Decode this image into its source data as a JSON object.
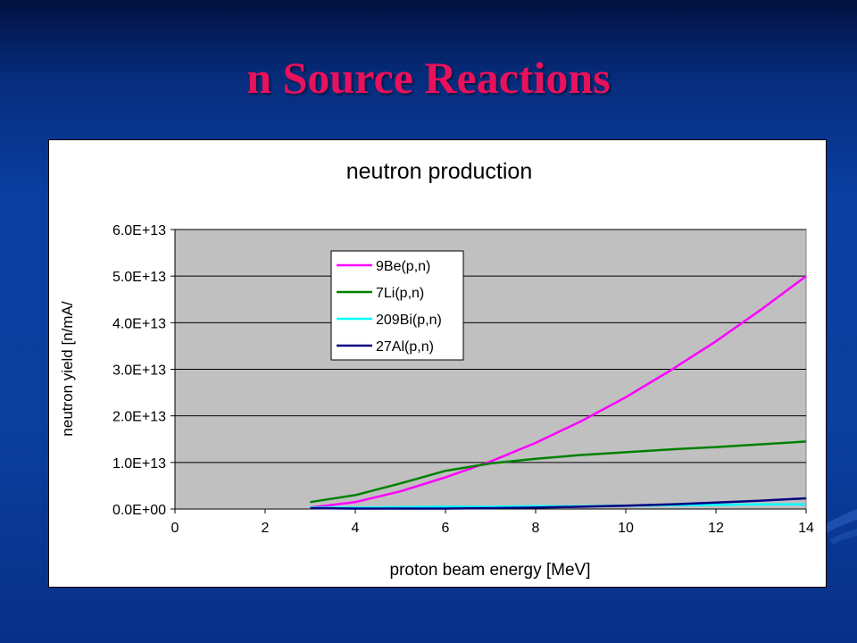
{
  "slide": {
    "title": "n Source Reactions"
  },
  "colors": {
    "title": "#e8115c",
    "plot_area": "#c0c0c0",
    "background": "#0b3f9e"
  },
  "chart_data": {
    "type": "line",
    "title": "neutron production",
    "xlabel": "proton beam energy [MeV]",
    "ylabel": "neutron yield [n/mA/",
    "xlim": [
      0,
      14
    ],
    "ylim": [
      0,
      60000000000000
    ],
    "x_ticks": [
      0,
      2,
      4,
      6,
      8,
      10,
      12,
      14
    ],
    "x_tick_labels": [
      "0",
      "2",
      "4",
      "6",
      "8",
      "10",
      "12",
      "14"
    ],
    "y_ticks": [
      0,
      10000000000000,
      20000000000000,
      30000000000000,
      40000000000000,
      50000000000000,
      60000000000000
    ],
    "y_tick_labels": [
      "0.0E+00",
      "1.0E+13",
      "2.0E+13",
      "3.0E+13",
      "4.0E+13",
      "5.0E+13",
      "6.0E+13"
    ],
    "grid": "horizontal",
    "legend_position": "top-left inside plot",
    "series": [
      {
        "name": "9Be(p,n)",
        "color": "#ff00ff",
        "x": [
          3,
          4,
          5,
          6,
          7,
          8,
          9,
          10,
          11,
          12,
          13,
          14
        ],
        "y": [
          300000000000,
          1500000000000,
          3800000000000,
          6800000000000,
          10200000000000,
          14200000000000,
          18800000000000,
          24000000000000,
          29800000000000,
          36000000000000,
          42800000000000,
          50000000000000
        ]
      },
      {
        "name": "7Li(p,n)",
        "color": "#008000",
        "x": [
          3,
          4,
          5,
          6,
          7,
          8,
          9,
          10,
          11,
          12,
          13,
          14
        ],
        "y": [
          1500000000000,
          3000000000000,
          5500000000000,
          8200000000000,
          9800000000000,
          10800000000000,
          11600000000000,
          12200000000000,
          12800000000000,
          13300000000000,
          13900000000000,
          14500000000000
        ]
      },
      {
        "name": "209Bi(p,n)",
        "color": "#00ffff",
        "x": [
          3,
          4,
          5,
          6,
          7,
          8,
          9,
          10,
          11,
          12,
          13,
          14
        ],
        "y": [
          300000000000,
          300000000000,
          400000000000,
          500000000000,
          500000000000,
          600000000000,
          600000000000,
          700000000000,
          800000000000,
          900000000000,
          1000000000000,
          1000000000000
        ]
      },
      {
        "name": "27Al(p,n)",
        "color": "#000080",
        "x": [
          3,
          4,
          5,
          6,
          7,
          8,
          9,
          10,
          11,
          12,
          13,
          14
        ],
        "y": [
          200000000000,
          100000000000,
          100000000000,
          100000000000,
          200000000000,
          300000000000,
          500000000000,
          700000000000,
          1000000000000,
          1400000000000,
          1800000000000,
          2300000000000
        ]
      }
    ]
  }
}
